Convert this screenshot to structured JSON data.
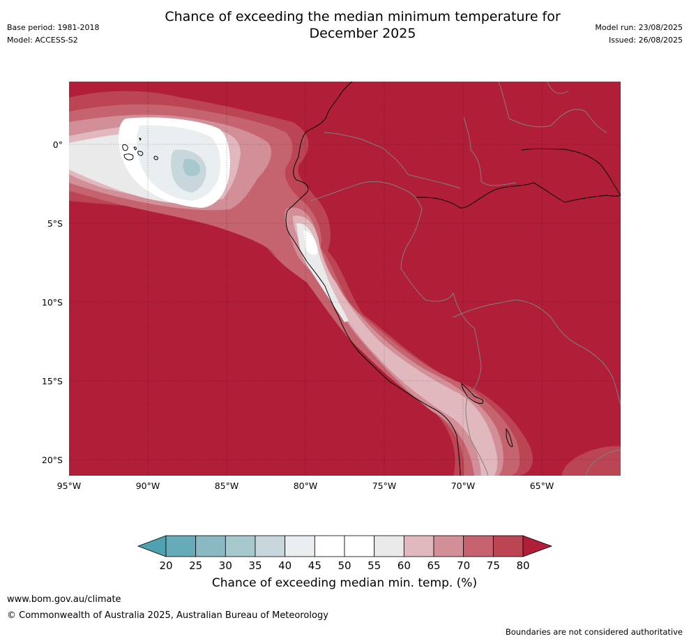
{
  "header": {
    "title_line1": "Chance of exceeding the median minimum temperature for",
    "title_line2": "December 2025",
    "base_period": "Base period: 1981-2018",
    "model": "Model: ACCESS-S2",
    "model_run": "Model run: 23/08/2025",
    "issued": "Issued: 26/08/2025"
  },
  "map": {
    "background_color": "#b11e38",
    "lat_labels": [
      "0°",
      "5°S",
      "10°S",
      "15°S",
      "20°S"
    ],
    "lon_labels": [
      "95°W",
      "90°W",
      "85°W",
      "80°W",
      "75°W",
      "70°W",
      "65°W"
    ]
  },
  "colorbar": {
    "label": "Chance of exceeding median min. temp. (%)",
    "ticks": [
      "20",
      "25",
      "30",
      "35",
      "40",
      "45",
      "50",
      "55",
      "60",
      "65",
      "70",
      "75",
      "80"
    ],
    "colors": [
      "#68abb8",
      "#8ab9c4",
      "#a7c8cd",
      "#c8d7db",
      "#e9eef0",
      "#ffffff",
      "#ffffff",
      "#eaeaea",
      "#e0b8be",
      "#d38f98",
      "#c5646f",
      "#bb4553"
    ],
    "under_color": "#4ea1ae",
    "over_color": "#b11e38"
  },
  "footer": {
    "website": "www.bom.gov.au/climate",
    "copyright": "© Commonwealth of Australia 2025, Australian Bureau of Meteorology",
    "disclaimer": "Boundaries are not considered authoritative"
  }
}
